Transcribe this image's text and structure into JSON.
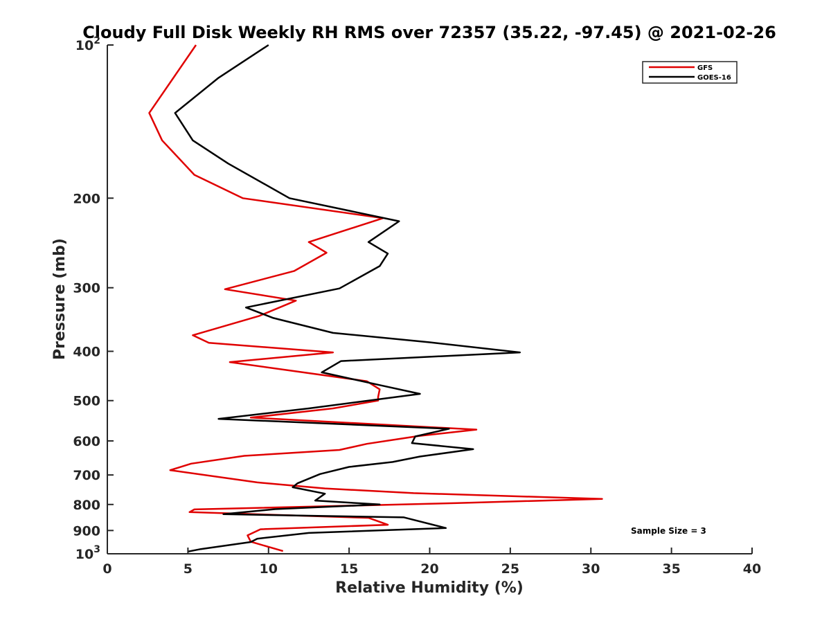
{
  "chart_data": {
    "type": "line",
    "title": "Cloudy Full Disk Weekly RH RMS over 72357 (35.22, -97.45) @ 2021-02-26",
    "xlabel": "Relative Humidity (%)",
    "ylabel": "Pressure (mb)",
    "xlim": [
      0,
      40
    ],
    "ylim": [
      100,
      1000
    ],
    "y_scale": "log",
    "y_reversed": true,
    "grid": false,
    "legend_position": "top-right",
    "annotation": "Sample Size = 3",
    "x_ticks": [
      "0",
      "5",
      "10",
      "15",
      "20",
      "25",
      "30",
      "35",
      "40"
    ],
    "x_tick_values": [
      0,
      5,
      10,
      15,
      20,
      25,
      30,
      35,
      40
    ],
    "y_ticks": [
      {
        "value": 100,
        "base": "10",
        "exp": "2"
      },
      {
        "value": 200,
        "label": "200"
      },
      {
        "value": 300,
        "label": "300"
      },
      {
        "value": 400,
        "label": "400"
      },
      {
        "value": 500,
        "label": "500"
      },
      {
        "value": 600,
        "label": "600"
      },
      {
        "value": 700,
        "label": "700"
      },
      {
        "value": 800,
        "label": "800"
      },
      {
        "value": 900,
        "label": "900"
      },
      {
        "value": 1000,
        "base": "10",
        "exp": "3"
      }
    ],
    "series": [
      {
        "name": "GFS",
        "color": "#e00000",
        "points": [
          [
            5.5,
            100
          ],
          [
            2.6,
            136
          ],
          [
            3.4,
            154
          ],
          [
            5.4,
            180
          ],
          [
            8.4,
            200
          ],
          [
            17.1,
            219
          ],
          [
            12.5,
            244
          ],
          [
            13.6,
            256
          ],
          [
            11.6,
            278
          ],
          [
            7.3,
            302
          ],
          [
            11.7,
            318
          ],
          [
            9.4,
            341
          ],
          [
            5.3,
            372
          ],
          [
            6.3,
            385
          ],
          [
            14.0,
            402
          ],
          [
            7.6,
            420
          ],
          [
            16.1,
            458
          ],
          [
            16.9,
            475
          ],
          [
            16.8,
            492
          ],
          [
            16.8,
            500
          ],
          [
            14.0,
            518
          ],
          [
            8.9,
            540
          ],
          [
            22.9,
            570
          ],
          [
            19.3,
            587
          ],
          [
            16.1,
            608
          ],
          [
            14.4,
            625
          ],
          [
            8.5,
            642
          ],
          [
            5.2,
            665
          ],
          [
            3.9,
            685
          ],
          [
            9.3,
            724
          ],
          [
            13.5,
            744
          ],
          [
            19.0,
            760
          ],
          [
            30.7,
            780
          ],
          [
            21.7,
            795
          ],
          [
            5.4,
            818
          ],
          [
            5.1,
            828
          ],
          [
            16.2,
            850
          ],
          [
            17.4,
            877
          ],
          [
            9.5,
            895
          ],
          [
            8.7,
            920
          ],
          [
            8.9,
            947
          ],
          [
            10.9,
            988
          ]
        ]
      },
      {
        "name": "GOES-16",
        "color": "#000000",
        "points": [
          [
            10.0,
            100
          ],
          [
            6.9,
            116
          ],
          [
            4.2,
            136
          ],
          [
            5.3,
            154
          ],
          [
            7.5,
            171
          ],
          [
            11.3,
            200
          ],
          [
            18.1,
            222
          ],
          [
            16.2,
            244
          ],
          [
            17.4,
            257
          ],
          [
            16.9,
            272
          ],
          [
            14.4,
            301
          ],
          [
            8.6,
            328
          ],
          [
            10.3,
            344
          ],
          [
            14.0,
            368
          ],
          [
            20.0,
            384
          ],
          [
            25.6,
            402
          ],
          [
            14.5,
            418
          ],
          [
            13.3,
            440
          ],
          [
            16.9,
            466
          ],
          [
            19.4,
            485
          ],
          [
            12.5,
            518
          ],
          [
            6.9,
            543
          ],
          [
            21.2,
            568
          ],
          [
            19.1,
            588
          ],
          [
            18.9,
            606
          ],
          [
            22.7,
            623
          ],
          [
            19.4,
            644
          ],
          [
            17.7,
            660
          ],
          [
            15.0,
            675
          ],
          [
            13.2,
            697
          ],
          [
            11.8,
            727
          ],
          [
            11.5,
            740
          ],
          [
            13.5,
            762
          ],
          [
            12.9,
            786
          ],
          [
            16.9,
            800
          ],
          [
            10.4,
            817
          ],
          [
            7.2,
            836
          ],
          [
            18.4,
            848
          ],
          [
            21.0,
            890
          ],
          [
            12.5,
            910
          ],
          [
            9.3,
            934
          ],
          [
            8.9,
            948
          ],
          [
            5.8,
            979
          ],
          [
            5.0,
            990
          ]
        ]
      }
    ]
  }
}
